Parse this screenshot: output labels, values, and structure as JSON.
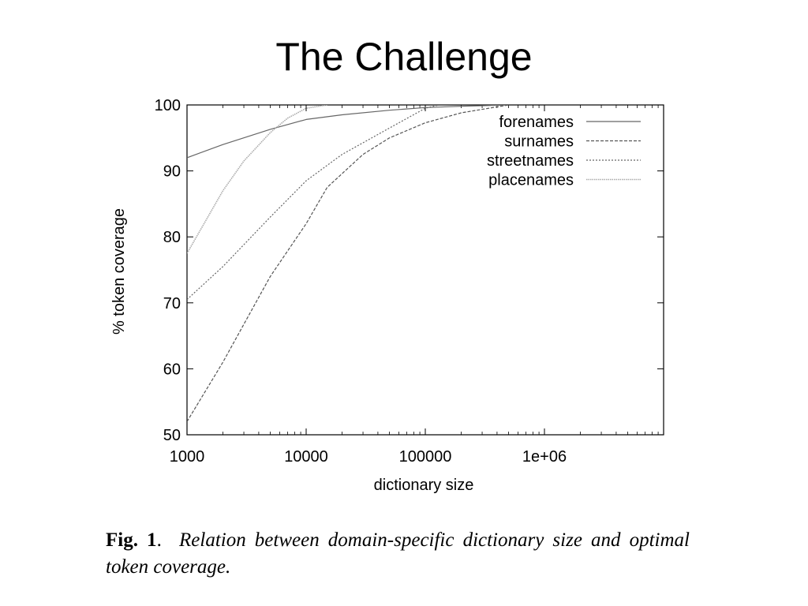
{
  "slide": {
    "title": "The Challenge"
  },
  "caption": {
    "label": "Fig. 1",
    "separator": ".",
    "text": "Relation between domain-specific dictionary size and optimal token coverage."
  },
  "chart_data": {
    "type": "line",
    "title": "",
    "xlabel": "dictionary size",
    "ylabel": "% token coverage",
    "xscale": "log",
    "xlim": [
      1000,
      10000000
    ],
    "ylim": [
      50,
      100
    ],
    "xticks": [
      1000,
      10000,
      100000,
      1000000
    ],
    "xtick_labels": [
      "1000",
      "10000",
      "100000",
      "1e+06"
    ],
    "yticks": [
      50,
      60,
      70,
      80,
      90,
      100
    ],
    "ytick_labels": [
      "50",
      "60",
      "70",
      "80",
      "90",
      "100"
    ],
    "grid": false,
    "legend_position": "top-right",
    "series": [
      {
        "name": "forenames",
        "style": "solid",
        "color": "#666666",
        "points": [
          [
            1000,
            92
          ],
          [
            2000,
            94
          ],
          [
            5000,
            96.3
          ],
          [
            10000,
            97.8
          ],
          [
            20000,
            98.5
          ],
          [
            50000,
            99.2
          ],
          [
            100000,
            99.6
          ],
          [
            200000,
            99.8
          ],
          [
            500000,
            100
          ]
        ]
      },
      {
        "name": "surnames",
        "style": "dashed",
        "color": "#555555",
        "points": [
          [
            1000,
            52
          ],
          [
            2000,
            61
          ],
          [
            5000,
            74
          ],
          [
            10000,
            82
          ],
          [
            15000,
            87.5
          ],
          [
            30000,
            92.5
          ],
          [
            50000,
            95
          ],
          [
            100000,
            97.3
          ],
          [
            200000,
            98.8
          ],
          [
            500000,
            100
          ]
        ]
      },
      {
        "name": "streetnames",
        "style": "dotted",
        "color": "#666666",
        "points": [
          [
            1000,
            70.5
          ],
          [
            2000,
            75.5
          ],
          [
            5000,
            83
          ],
          [
            10000,
            88.5
          ],
          [
            20000,
            92.5
          ],
          [
            50000,
            96.5
          ],
          [
            100000,
            99.5
          ],
          [
            130000,
            100
          ]
        ]
      },
      {
        "name": "placenames",
        "style": "dotted-light",
        "color": "#aaaaaa",
        "points": [
          [
            1000,
            77.5
          ],
          [
            2000,
            87
          ],
          [
            3000,
            91.5
          ],
          [
            5000,
            95.8
          ],
          [
            7000,
            98
          ],
          [
            10000,
            99.5
          ],
          [
            15000,
            100
          ]
        ]
      }
    ]
  }
}
